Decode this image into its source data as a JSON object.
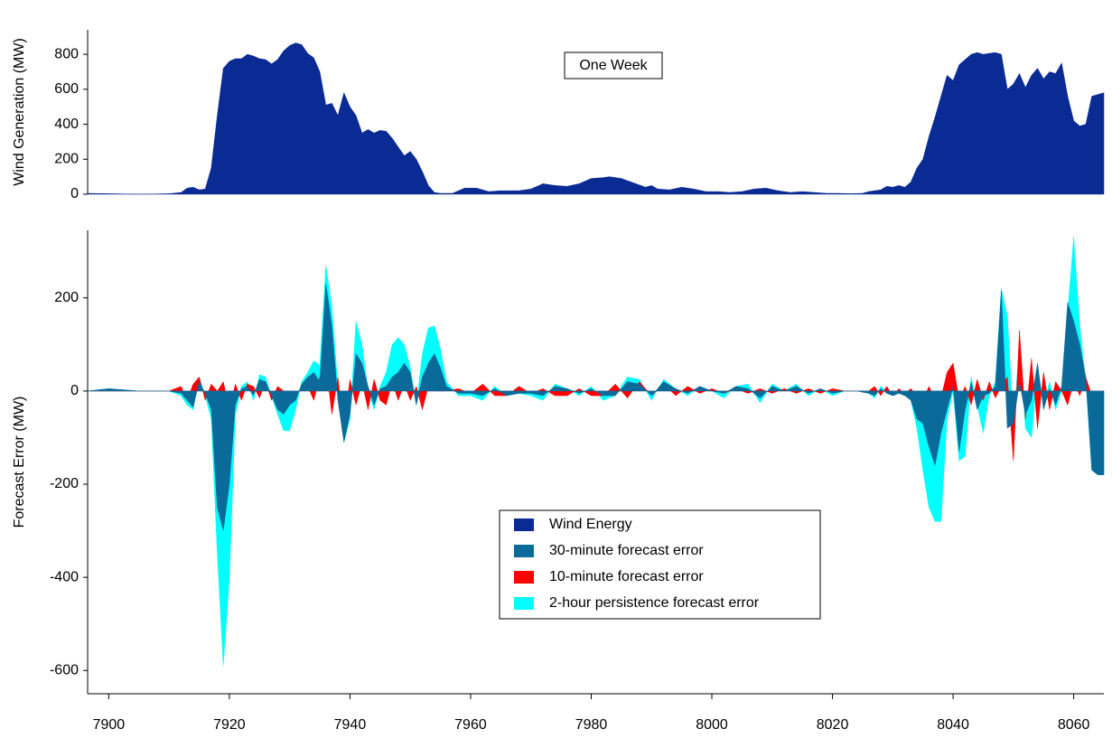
{
  "chart_data": [
    {
      "type": "area",
      "annotation": "One Week",
      "ylabel": "Wind Generation (MW)",
      "xlim": [
        7896.5,
        8065
      ],
      "ylim": [
        0,
        940
      ],
      "yticks": [
        0,
        200,
        400,
        600,
        800
      ],
      "x": [
        7896.5,
        7900,
        7905,
        7910,
        7912,
        7913,
        7914,
        7915,
        7916,
        7917,
        7918,
        7919,
        7920,
        7921,
        7922,
        7923,
        7924,
        7925,
        7926,
        7927,
        7928,
        7929,
        7930,
        7931,
        7932,
        7933,
        7934,
        7935,
        7936,
        7937,
        7938,
        7939,
        7940,
        7941,
        7942,
        7943,
        7944,
        7945,
        7946,
        7947,
        7948,
        7949,
        7950,
        7951,
        7952,
        7953,
        7954,
        7955,
        7957,
        7959,
        7961,
        7963,
        7965,
        7968,
        7970,
        7972,
        7974,
        7976,
        7978,
        7980,
        7982,
        7983,
        7985,
        7987,
        7989,
        7990,
        7991,
        7993,
        7995,
        7997,
        7999,
        8001,
        8003,
        8005,
        8007,
        8009,
        8011,
        8013,
        8015,
        8017,
        8019,
        8021,
        8023,
        8025,
        8026,
        8027,
        8028,
        8029,
        8030,
        8031,
        8032,
        8033,
        8034,
        8035,
        8036,
        8037,
        8038,
        8039,
        8040,
        8041,
        8042,
        8043,
        8044,
        8045,
        8046,
        8047,
        8048,
        8049,
        8050,
        8051,
        8052,
        8053,
        8054,
        8055,
        8056,
        8057,
        8058,
        8059,
        8060,
        8061,
        8062,
        8063,
        8065
      ],
      "series": [
        {
          "name": "Wind Energy",
          "color": "#0a2a94",
          "values": [
            5,
            3,
            0,
            3,
            10,
            35,
            40,
            25,
            30,
            150,
            450,
            720,
            760,
            775,
            775,
            800,
            790,
            775,
            770,
            745,
            770,
            820,
            850,
            865,
            855,
            805,
            780,
            700,
            510,
            520,
            450,
            580,
            500,
            450,
            350,
            370,
            350,
            365,
            360,
            320,
            270,
            220,
            245,
            200,
            130,
            50,
            10,
            5,
            5,
            35,
            35,
            15,
            20,
            20,
            30,
            60,
            50,
            45,
            60,
            90,
            95,
            100,
            90,
            65,
            40,
            50,
            30,
            25,
            40,
            30,
            15,
            15,
            10,
            15,
            30,
            35,
            20,
            10,
            15,
            10,
            5,
            5,
            3,
            5,
            15,
            20,
            25,
            45,
            40,
            50,
            40,
            70,
            150,
            200,
            330,
            440,
            560,
            680,
            650,
            740,
            770,
            800,
            810,
            800,
            805,
            810,
            800,
            600,
            630,
            690,
            610,
            680,
            720,
            660,
            700,
            690,
            750,
            560,
            420,
            390,
            400,
            560,
            580
          ]
        }
      ]
    },
    {
      "type": "area",
      "ylabel": "Forecast Error (MW)",
      "xlim": [
        7896.5,
        8065
      ],
      "ylim": [
        -650,
        345
      ],
      "yticks": [
        -600,
        -400,
        -200,
        0,
        200
      ],
      "xticks": [
        7900,
        7920,
        7940,
        7960,
        7980,
        8000,
        8020,
        8040,
        8060
      ],
      "x": [
        7896.5,
        7900,
        7905,
        7910,
        7912,
        7913,
        7914,
        7915,
        7916,
        7917,
        7918,
        7919,
        7920,
        7921,
        7922,
        7923,
        7924,
        7925,
        7926,
        7927,
        7928,
        7929,
        7930,
        7931,
        7932,
        7933,
        7934,
        7935,
        7936,
        7937,
        7938,
        7939,
        7940,
        7941,
        7942,
        7943,
        7944,
        7945,
        7946,
        7947,
        7948,
        7949,
        7950,
        7951,
        7952,
        7953,
        7954,
        7955,
        7956,
        7958,
        7960,
        7962,
        7964,
        7966,
        7968,
        7970,
        7972,
        7974,
        7976,
        7978,
        7980,
        7982,
        7984,
        7986,
        7988,
        7990,
        7992,
        7994,
        7996,
        7998,
        8000,
        8002,
        8004,
        8006,
        8008,
        8010,
        8012,
        8014,
        8016,
        8018,
        8020,
        8022,
        8024,
        8026,
        8027,
        8028,
        8029,
        8030,
        8031,
        8032,
        8033,
        8034,
        8035,
        8036,
        8037,
        8038,
        8039,
        8040,
        8041,
        8042,
        8043,
        8044,
        8045,
        8046,
        8047,
        8048,
        8049,
        8050,
        8051,
        8052,
        8053,
        8054,
        8055,
        8056,
        8057,
        8058,
        8059,
        8060,
        8061,
        8062,
        8063,
        8064,
        8065
      ],
      "series": [
        {
          "name": "30-minute forecast error",
          "color": "#0a6a9a",
          "values": [
            0,
            5,
            0,
            0,
            -5,
            -20,
            -35,
            20,
            -5,
            -40,
            -250,
            -300,
            -200,
            -30,
            5,
            10,
            -10,
            25,
            20,
            -10,
            -40,
            -50,
            -30,
            -20,
            15,
            30,
            40,
            20,
            230,
            140,
            -20,
            -110,
            -50,
            80,
            60,
            10,
            -30,
            5,
            10,
            30,
            40,
            60,
            40,
            -30,
            30,
            60,
            80,
            50,
            10,
            -5,
            -5,
            -10,
            5,
            -10,
            -5,
            -5,
            -10,
            10,
            5,
            -5,
            5,
            -10,
            -10,
            20,
            15,
            -10,
            20,
            5,
            -5,
            10,
            0,
            -5,
            10,
            5,
            -15,
            10,
            0,
            10,
            -5,
            5,
            -5,
            0,
            0,
            -5,
            -10,
            5,
            -5,
            -10,
            -5,
            -10,
            -20,
            -60,
            -70,
            -120,
            -160,
            -90,
            -40,
            10,
            -130,
            -40,
            20,
            -40,
            -10,
            -5,
            10,
            215,
            -80,
            -70,
            20,
            -50,
            -20,
            60,
            -40,
            5,
            -30,
            10,
            190,
            150,
            100,
            30,
            -170,
            -180,
            -180
          ]
        },
        {
          "name": "10-minute forecast error",
          "color": "#ff0000",
          "values": [
            0,
            0,
            0,
            0,
            10,
            -20,
            15,
            30,
            -20,
            15,
            0,
            20,
            -40,
            15,
            -20,
            15,
            10,
            -15,
            20,
            -20,
            10,
            0,
            0,
            0,
            0,
            10,
            -20,
            30,
            60,
            -50,
            30,
            -80,
            25,
            -30,
            20,
            -40,
            25,
            -20,
            -30,
            20,
            -20,
            15,
            -20,
            10,
            -40,
            10,
            0,
            0,
            0,
            5,
            -5,
            15,
            -10,
            -10,
            10,
            -5,
            5,
            -10,
            -10,
            5,
            -10,
            -10,
            15,
            -15,
            20,
            -10,
            15,
            -10,
            10,
            -5,
            5,
            -5,
            5,
            -5,
            5,
            -5,
            5,
            -5,
            5,
            -5,
            5,
            0,
            0,
            0,
            10,
            -10,
            10,
            -10,
            5,
            -5,
            5,
            -10,
            -20,
            10,
            -20,
            -15,
            40,
            60,
            -20,
            10,
            -30,
            25,
            -20,
            20,
            -15,
            10,
            30,
            -150,
            130,
            -60,
            70,
            -80,
            40,
            -40,
            20,
            0,
            -30,
            20,
            -10,
            30,
            -10,
            0,
            0
          ]
        },
        {
          "name": "2-hour persistence forecast error",
          "color": "#00ffff",
          "values": [
            0,
            5,
            0,
            0,
            -10,
            -30,
            -40,
            30,
            -10,
            -60,
            -350,
            -590,
            -400,
            -50,
            10,
            20,
            -20,
            35,
            30,
            -10,
            -50,
            -85,
            -85,
            -40,
            20,
            40,
            65,
            55,
            270,
            180,
            10,
            -110,
            -60,
            150,
            100,
            0,
            -40,
            10,
            40,
            100,
            115,
            100,
            50,
            -30,
            80,
            135,
            140,
            90,
            20,
            -10,
            -10,
            -20,
            10,
            -10,
            -5,
            -10,
            -20,
            15,
            5,
            -10,
            10,
            -20,
            -10,
            30,
            25,
            -20,
            25,
            5,
            -10,
            10,
            0,
            -15,
            10,
            15,
            -25,
            15,
            0,
            15,
            -10,
            5,
            -10,
            0,
            0,
            -5,
            -15,
            10,
            0,
            -10,
            -5,
            -5,
            -20,
            -80,
            -170,
            -250,
            -280,
            -280,
            -60,
            0,
            -150,
            -140,
            30,
            -30,
            -90,
            -10,
            20,
            220,
            160,
            -70,
            100,
            -80,
            -100,
            50,
            -30,
            20,
            -40,
            0,
            170,
            330,
            140,
            20,
            -170,
            -180,
            -180
          ]
        }
      ]
    }
  ]
}
